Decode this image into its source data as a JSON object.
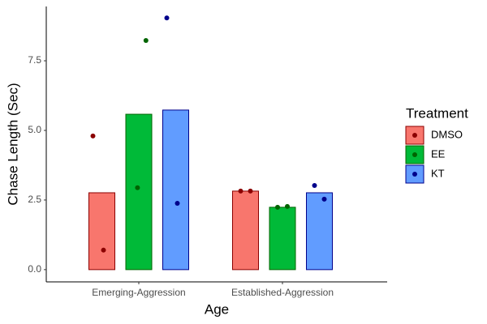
{
  "chart_data": {
    "type": "bar",
    "x_label": "Age",
    "y_label": "Chase Length (Sec)",
    "legend_title": "Treatment",
    "categories": [
      "Emerging-Aggression",
      "Established-Aggression"
    ],
    "series": [
      {
        "name": "DMSO",
        "color": "#F8766D",
        "point_color": "#8B0000",
        "values": [
          2.76,
          2.82
        ],
        "points": [
          [
            4.8,
            0.7
          ],
          [
            2.82,
            2.82
          ]
        ]
      },
      {
        "name": "EE",
        "color": "#00BA38",
        "point_color": "#006400",
        "values": [
          5.58,
          2.24
        ],
        "points": [
          [
            8.23,
            2.94
          ],
          [
            2.24,
            2.27
          ]
        ]
      },
      {
        "name": "KT",
        "color": "#619CFF",
        "point_color": "#00008B",
        "values": [
          5.73,
          2.76
        ],
        "points": [
          [
            9.04,
            2.38
          ],
          [
            3.02,
            2.53
          ]
        ]
      }
    ],
    "ylim": [
      -0.44,
      9.45
    ],
    "yticks": [
      {
        "value": 0,
        "label": "0.0"
      },
      {
        "value": 2.5,
        "label": "2.5"
      },
      {
        "value": 5,
        "label": "5.0"
      },
      {
        "value": 7.5,
        "label": "7.5"
      }
    ],
    "grid": false,
    "legend": "right"
  }
}
